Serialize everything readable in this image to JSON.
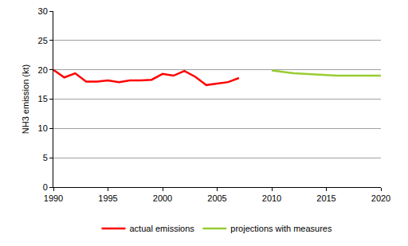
{
  "chart_data": {
    "type": "line",
    "y_label": "NH3 emission (kt)",
    "series": [
      {
        "name": "actual emissions",
        "color": "#ff0000",
        "x": [
          1990,
          1991,
          1992,
          1993,
          1994,
          1995,
          1996,
          1997,
          1998,
          1999,
          2000,
          2001,
          2002,
          2003,
          2004,
          2005,
          2006,
          2007
        ],
        "values": [
          20.0,
          18.7,
          19.4,
          18.0,
          18.0,
          18.2,
          17.9,
          18.2,
          18.2,
          18.3,
          19.3,
          19.0,
          19.8,
          18.8,
          17.4,
          17.6,
          17.9,
          18.6
        ]
      },
      {
        "name": "projections with measures",
        "color": "#99cc33",
        "x": [
          2010,
          2011,
          2012,
          2013,
          2014,
          2015,
          2016,
          2017,
          2018,
          2019,
          2020
        ],
        "values": [
          19.9,
          19.6,
          19.4,
          19.3,
          19.2,
          19.0,
          19.0,
          19.0,
          19.0,
          19.0,
          19.0
        ]
      }
    ],
    "xlim": [
      1990,
      2020
    ],
    "xticks": [
      1990,
      1995,
      2000,
      2005,
      2010,
      2015,
      2020
    ],
    "ylim": [
      0,
      30
    ],
    "yticks": [
      0,
      5,
      10,
      15,
      20,
      25,
      30
    ],
    "grid": true,
    "legend": "bottom"
  }
}
